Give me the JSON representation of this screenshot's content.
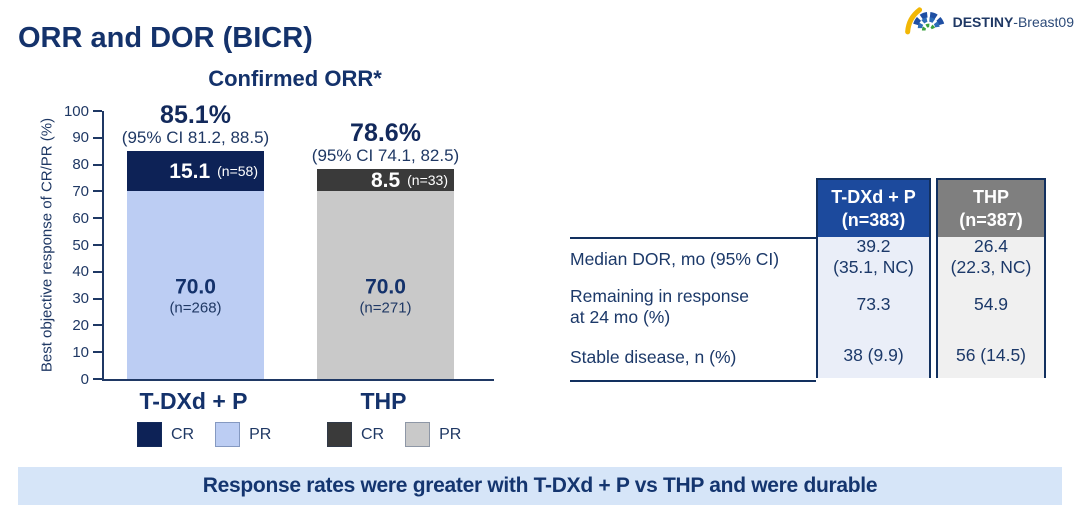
{
  "page": {
    "title": "ORR and DOR (BICR)"
  },
  "logo": {
    "brand": "DESTINY",
    "suffix": "-Breast09"
  },
  "chart_data": {
    "type": "bar",
    "stacked": true,
    "title": "Confirmed ORR*",
    "ylabel": "Best objective response of CR/PR (%)",
    "ylim": [
      0,
      100
    ],
    "yticks": [
      0,
      10,
      20,
      30,
      40,
      50,
      60,
      70,
      80,
      90,
      100
    ],
    "categories": [
      "T-DXd + P",
      "THP"
    ],
    "series": [
      {
        "name": "PR",
        "values": [
          70.0,
          70.0
        ],
        "colors": [
          "#bccdf3",
          "#c9c9c9"
        ],
        "labels": [
          "70.0",
          "70.0"
        ],
        "sublabels": [
          "(n=268)",
          "(n=271)"
        ]
      },
      {
        "name": "CR",
        "values": [
          15.1,
          8.5
        ],
        "colors": [
          "#0d2256",
          "#3a3a3a"
        ],
        "labels": [
          "15.1",
          "8.5"
        ],
        "sublabels": [
          "(n=58)",
          "(n=33)"
        ]
      }
    ],
    "totals": [
      {
        "pct": "85.1%",
        "ci": "(95% CI 81.2, 88.5)"
      },
      {
        "pct": "78.6%",
        "ci": "(95% CI 74.1, 82.5)"
      }
    ],
    "legend": [
      {
        "group": "T-DXd + P",
        "entries": [
          {
            "label": "CR",
            "color": "#0d2256"
          },
          {
            "label": "PR",
            "color": "#bccdf3"
          }
        ]
      },
      {
        "group": "THP",
        "entries": [
          {
            "label": "CR",
            "color": "#3a3a3a"
          },
          {
            "label": "PR",
            "color": "#c9c9c9"
          }
        ]
      }
    ]
  },
  "dor_table": {
    "columns": [
      {
        "label": "T-DXd + P",
        "sub": "(n=383)",
        "bg": "#1c4a9d"
      },
      {
        "label": "THP",
        "sub": "(n=387)",
        "bg": "#7f7f7f"
      }
    ],
    "rows": [
      {
        "label_lines": [
          "Median DOR, mo (95% CI)"
        ],
        "values": [
          [
            "39.2",
            "(35.1, NC)"
          ],
          [
            "26.4",
            "(22.3, NC)"
          ]
        ]
      },
      {
        "label_lines": [
          "Remaining in response",
          "at 24 mo (%)"
        ],
        "values": [
          [
            "73.3"
          ],
          [
            "54.9"
          ]
        ]
      },
      {
        "label_lines": [
          "Stable disease, n (%)"
        ],
        "values": [
          [
            "38 (9.9)"
          ],
          [
            "56 (14.5)"
          ]
        ]
      }
    ]
  },
  "banner": {
    "text": "Response rates were greater with T-DXd + P vs THP and were durable",
    "bg": "#d6e5f8"
  }
}
